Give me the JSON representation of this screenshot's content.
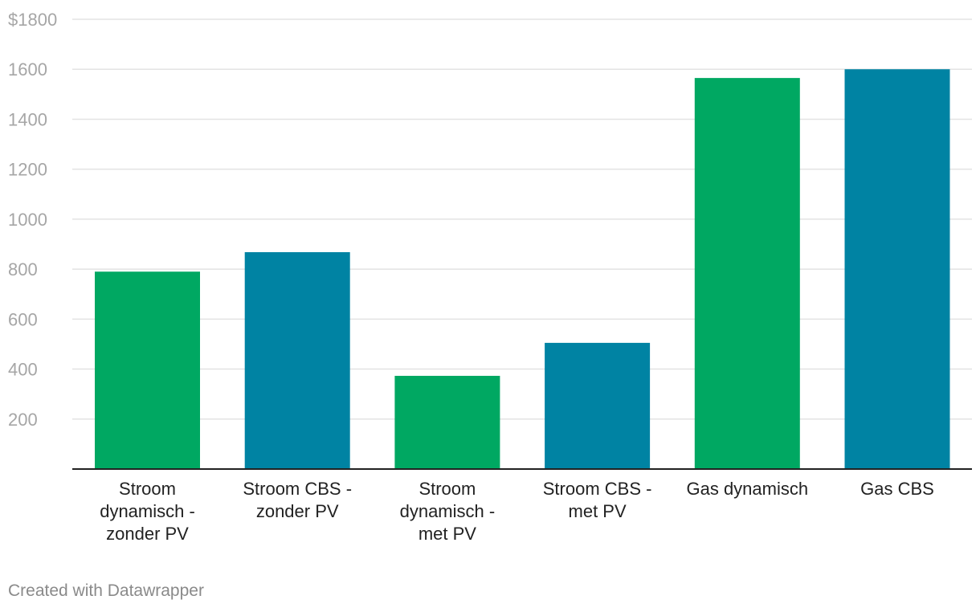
{
  "chart_data": {
    "type": "bar",
    "categories": [
      [
        "Stroom",
        "dynamisch -",
        "zonder PV"
      ],
      [
        "Stroom CBS -",
        "zonder PV"
      ],
      [
        "Stroom",
        "dynamisch -",
        "met PV"
      ],
      [
        "Stroom CBS -",
        "met PV"
      ],
      [
        "Gas dynamisch"
      ],
      [
        "Gas CBS"
      ]
    ],
    "values": [
      790,
      868,
      373,
      505,
      1565,
      1600
    ],
    "bar_colors": [
      "#00a862",
      "#0083a3",
      "#00a862",
      "#0083a3",
      "#00a862",
      "#0083a3"
    ],
    "ylim": [
      0,
      1800
    ],
    "y_ticks": [
      200,
      400,
      600,
      800,
      1000,
      1200,
      1400,
      1600,
      1800
    ],
    "y_tick_labels": [
      "200",
      "400",
      "600",
      "800",
      "1000",
      "1200",
      "1400",
      "1600",
      "$1800"
    ],
    "grid": true,
    "legend": "none"
  },
  "footer": {
    "credit": "Created with Datawrapper"
  }
}
